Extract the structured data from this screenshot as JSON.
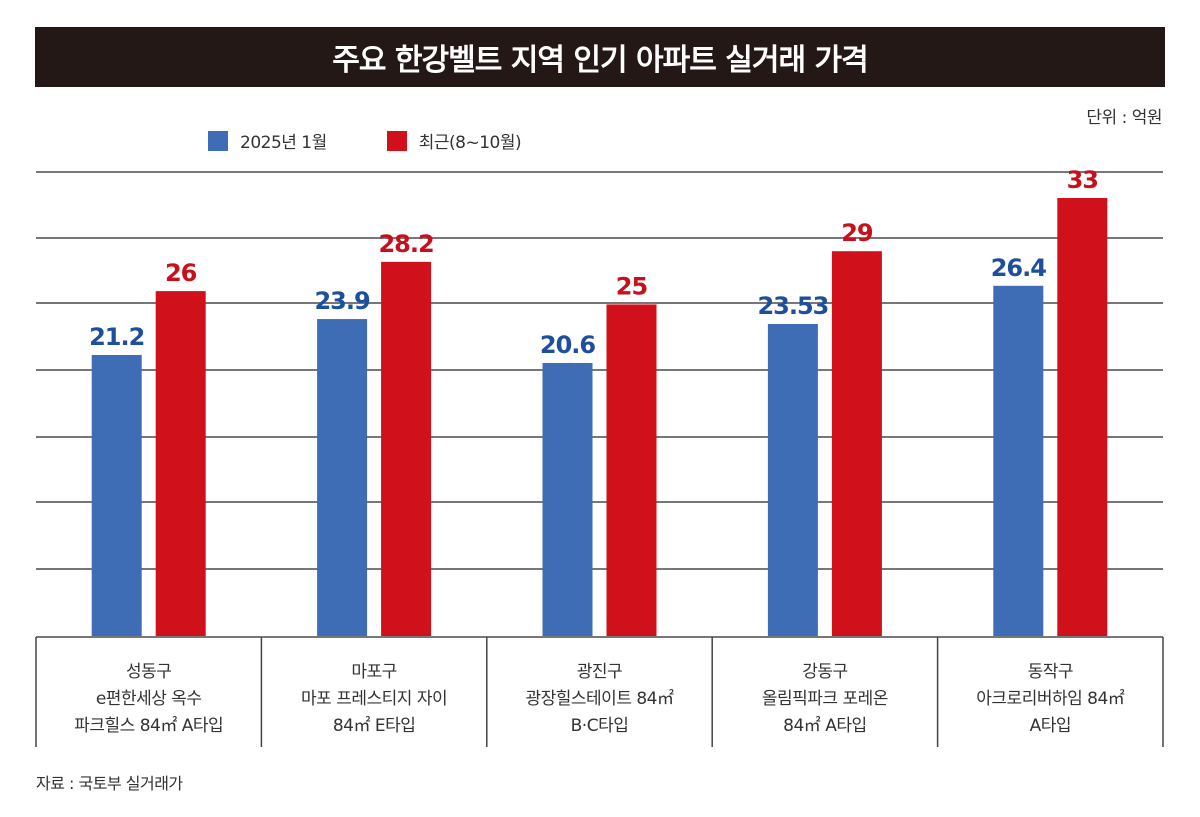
{
  "colors": {
    "title_band": "#231816",
    "series_2025_jan": "#3F6DB5",
    "series_recent": "#D0101B",
    "label_2025_jan": "#1D4F9C",
    "label_recent": "#C8101B"
  },
  "chart_data": {
    "type": "bar",
    "title": "주요 한강벨트 지역 인기 아파트 실거래 가격",
    "unit_label": "단위 : 억원",
    "xlabel": "",
    "ylabel": "",
    "ylim": [
      0,
      35
    ],
    "grid": true,
    "legend_position": "top-left",
    "categories": [
      [
        "성동구",
        "e편한세상 옥수",
        "파크힐스 84㎡ A타입"
      ],
      [
        "마포구",
        "마포 프레스티지 자이",
        "84㎡ E타입"
      ],
      [
        "광진구",
        "광장힐스테이트 84㎡",
        "B·C타입"
      ],
      [
        "강동구",
        "올림픽파크 포레온",
        "84㎡ A타입"
      ],
      [
        "동작구",
        "아크로리버하임 84㎡",
        "A타입"
      ]
    ],
    "series": [
      {
        "name": "2025년 1월",
        "values": [
          21.2,
          23.9,
          20.6,
          23.53,
          26.4
        ],
        "labels": [
          "21.2",
          "23.9",
          "20.6",
          "23.53",
          "26.4"
        ]
      },
      {
        "name": "최근(8~10월)",
        "values": [
          26,
          28.2,
          25,
          29,
          33
        ],
        "labels": [
          "26",
          "28.2",
          "25",
          "29",
          "33"
        ]
      }
    ],
    "source": "자료 : 국토부 실거래가"
  }
}
